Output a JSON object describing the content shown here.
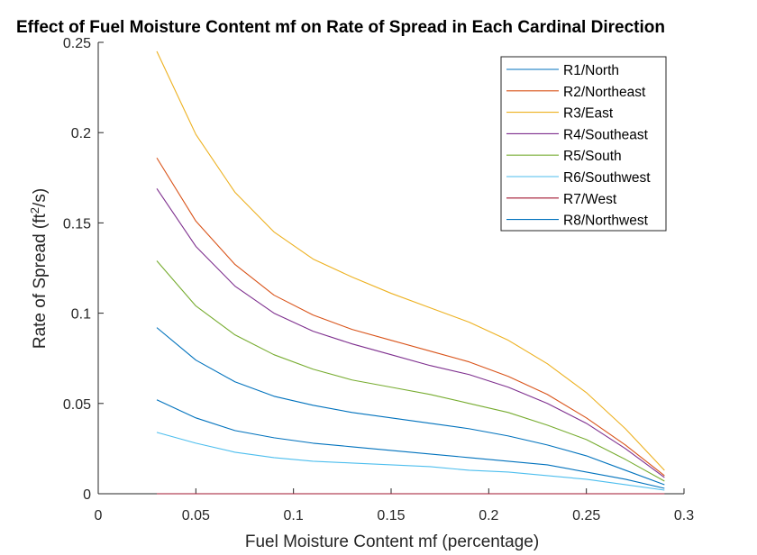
{
  "chart_data": {
    "type": "line",
    "title": "Effect of Fuel Moisture Content mf on Rate of Spread in Each Cardinal Direction",
    "xlabel": "Fuel Moisture Content mf (percentage)",
    "ylabel": "Rate of Spread (ft²/s)",
    "xlim": [
      0,
      0.3
    ],
    "ylim": [
      0,
      0.25
    ],
    "xticks": [
      0,
      0.05,
      0.1,
      0.15,
      0.2,
      0.25,
      0.3
    ],
    "xtick_labels": [
      "0",
      "0.05",
      "0.1",
      "0.15",
      "0.2",
      "0.25",
      "0.3"
    ],
    "yticks": [
      0,
      0.05,
      0.1,
      0.15,
      0.2,
      0.25
    ],
    "ytick_labels": [
      "0",
      "0.05",
      "0.1",
      "0.15",
      "0.2",
      "0.25"
    ],
    "grid": false,
    "legend_position": "top-right",
    "x": [
      0.03,
      0.05,
      0.07,
      0.09,
      0.11,
      0.13,
      0.15,
      0.17,
      0.19,
      0.21,
      0.23,
      0.25,
      0.27,
      0.29
    ],
    "series": [
      {
        "name": "R1/North",
        "color": "#0072BD",
        "values": [
          0.092,
          0.074,
          0.062,
          0.054,
          0.049,
          0.045,
          0.042,
          0.039,
          0.036,
          0.032,
          0.027,
          0.021,
          0.013,
          0.005
        ]
      },
      {
        "name": "R2/Northeast",
        "color": "#D95319",
        "values": [
          0.186,
          0.151,
          0.127,
          0.11,
          0.099,
          0.091,
          0.085,
          0.079,
          0.073,
          0.065,
          0.055,
          0.042,
          0.027,
          0.01
        ]
      },
      {
        "name": "R3/East",
        "color": "#EDB120",
        "values": [
          0.245,
          0.199,
          0.167,
          0.145,
          0.13,
          0.12,
          0.111,
          0.103,
          0.095,
          0.085,
          0.072,
          0.056,
          0.036,
          0.013
        ]
      },
      {
        "name": "R4/Southeast",
        "color": "#7E2F8E",
        "values": [
          0.169,
          0.137,
          0.115,
          0.1,
          0.09,
          0.083,
          0.077,
          0.071,
          0.066,
          0.059,
          0.05,
          0.039,
          0.025,
          0.009
        ]
      },
      {
        "name": "R5/South",
        "color": "#77AC30",
        "values": [
          0.129,
          0.104,
          0.088,
          0.077,
          0.069,
          0.063,
          0.059,
          0.055,
          0.05,
          0.045,
          0.038,
          0.03,
          0.019,
          0.007
        ]
      },
      {
        "name": "R6/Southwest",
        "color": "#4DBEEE",
        "values": [
          0.034,
          0.028,
          0.023,
          0.02,
          0.018,
          0.017,
          0.016,
          0.015,
          0.013,
          0.012,
          0.01,
          0.008,
          0.005,
          0.002
        ]
      },
      {
        "name": "R7/West",
        "color": "#A2142F",
        "values": [
          0,
          0,
          0,
          0,
          0,
          0,
          0,
          0,
          0,
          0,
          0,
          0,
          0,
          0
        ]
      },
      {
        "name": "R8/Northwest",
        "color": "#0072BD",
        "values": [
          0.052,
          0.042,
          0.035,
          0.031,
          0.028,
          0.026,
          0.024,
          0.022,
          0.02,
          0.018,
          0.016,
          0.012,
          0.008,
          0.003
        ]
      }
    ]
  }
}
